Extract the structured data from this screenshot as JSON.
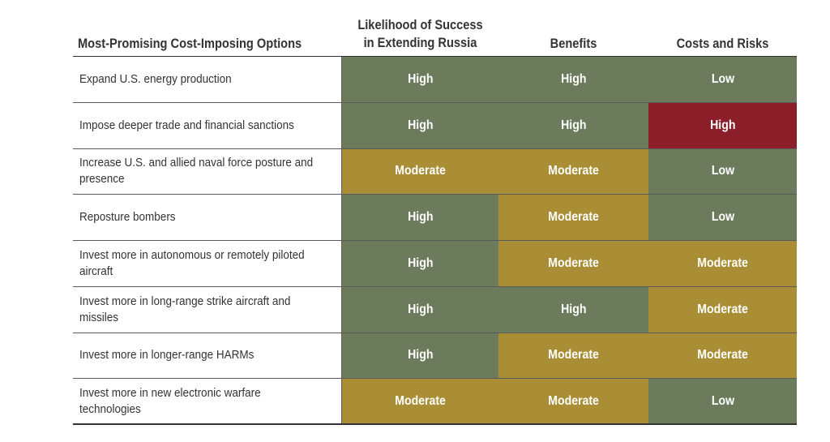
{
  "header": {
    "options_label": "Most-Promising Cost-Imposing Options",
    "likelihood_label_line1": "Likelihood of Success",
    "likelihood_label_line2": "in Extending Russia",
    "benefits_label": "Benefits",
    "costs_label": "Costs and Risks"
  },
  "colors": {
    "High_good": "#6b7b5b",
    "Low": "#6b7b5b",
    "Moderate": "#a98e35",
    "High_bad": "#8c1e2a"
  },
  "rows": [
    {
      "option": "Expand U.S. energy production",
      "likelihood": "High",
      "benefits": "High",
      "costs": "Low"
    },
    {
      "option": "Impose deeper trade and financial sanctions",
      "likelihood": "High",
      "benefits": "High",
      "costs": "High"
    },
    {
      "option": "Increase U.S. and allied naval force posture and presence",
      "likelihood": "Moderate",
      "benefits": "Moderate",
      "costs": "Low"
    },
    {
      "option": "Reposture bombers",
      "likelihood": "High",
      "benefits": "Moderate",
      "costs": "Low"
    },
    {
      "option": "Invest more in autonomous or remotely piloted aircraft",
      "likelihood": "High",
      "benefits": "Moderate",
      "costs": "Moderate"
    },
    {
      "option": "Invest more in long-range strike aircraft and missiles",
      "likelihood": "High",
      "benefits": "High",
      "costs": "Moderate"
    },
    {
      "option": "Invest more in longer-range HARMs",
      "likelihood": "High",
      "benefits": "Moderate",
      "costs": "Moderate"
    },
    {
      "option": "Invest more in new electronic warfare technologies",
      "likelihood": "Moderate",
      "benefits": "Moderate",
      "costs": "Low"
    }
  ]
}
